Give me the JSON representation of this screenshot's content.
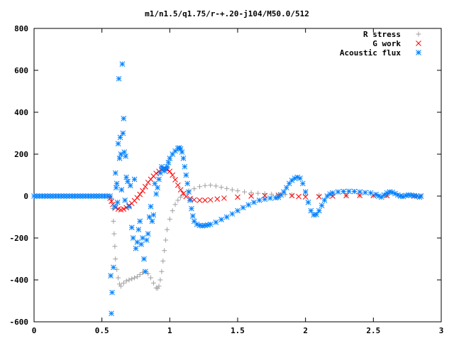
{
  "chart_data": {
    "type": "scatter",
    "title": "m1/n1.5/q1.75/r-+.20-j104/M50.0/512",
    "xlabel": "",
    "ylabel": "",
    "xlim": [
      0,
      3
    ],
    "ylim": [
      -600,
      800
    ],
    "x_ticks": [
      "0",
      "0.5",
      "1",
      "1.5",
      "2",
      "2.5",
      "3"
    ],
    "y_ticks": [
      "-600",
      "-400",
      "-200",
      "0",
      "200",
      "400",
      "600",
      "800"
    ],
    "grid": false,
    "legend_position": "top-right",
    "series": [
      {
        "name": "R stress",
        "marker": "plus",
        "color": "#a0a0a0",
        "points": [
          [
            0.57,
            -10
          ],
          [
            0.58,
            -60
          ],
          [
            0.585,
            -120
          ],
          [
            0.59,
            -180
          ],
          [
            0.595,
            -240
          ],
          [
            0.6,
            -300
          ],
          [
            0.61,
            -350
          ],
          [
            0.62,
            -390
          ],
          [
            0.63,
            -420
          ],
          [
            0.64,
            -430
          ],
          [
            0.66,
            -415
          ],
          [
            0.68,
            -405
          ],
          [
            0.7,
            -400
          ],
          [
            0.72,
            -395
          ],
          [
            0.74,
            -390
          ],
          [
            0.76,
            -385
          ],
          [
            0.78,
            -375
          ],
          [
            0.8,
            -365
          ],
          [
            0.82,
            -360
          ],
          [
            0.84,
            -370
          ],
          [
            0.86,
            -390
          ],
          [
            0.88,
            -415
          ],
          [
            0.9,
            -438
          ],
          [
            0.91,
            -440
          ],
          [
            0.92,
            -430
          ],
          [
            0.93,
            -400
          ],
          [
            0.94,
            -360
          ],
          [
            0.95,
            -310
          ],
          [
            0.96,
            -260
          ],
          [
            0.97,
            -210
          ],
          [
            0.98,
            -160
          ],
          [
            1.0,
            -110
          ],
          [
            1.02,
            -70
          ],
          [
            1.04,
            -40
          ],
          [
            1.06,
            -20
          ],
          [
            1.08,
            -5
          ],
          [
            1.1,
            10
          ],
          [
            1.14,
            25
          ],
          [
            1.18,
            35
          ],
          [
            1.22,
            45
          ],
          [
            1.26,
            50
          ],
          [
            1.3,
            52
          ],
          [
            1.34,
            48
          ],
          [
            1.38,
            42
          ],
          [
            1.42,
            36
          ],
          [
            1.46,
            30
          ],
          [
            1.5,
            25
          ],
          [
            1.55,
            20
          ],
          [
            1.6,
            16
          ],
          [
            1.65,
            13
          ],
          [
            1.7,
            11
          ],
          [
            1.75,
            9
          ],
          [
            1.8,
            8
          ],
          [
            1.85,
            7
          ],
          [
            1.9,
            6
          ],
          [
            2.0,
            5
          ],
          [
            2.1,
            4
          ],
          [
            2.2,
            3
          ],
          [
            2.3,
            2
          ],
          [
            2.4,
            2
          ],
          [
            2.5,
            1
          ],
          [
            2.6,
            1
          ],
          [
            2.7,
            0
          ],
          [
            2.8,
            0
          ],
          [
            2.85,
            0
          ]
        ]
      },
      {
        "name": "G work",
        "marker": "cross",
        "color": "#ff0000",
        "points": [
          [
            0.56,
            -10
          ],
          [
            0.57,
            -25
          ],
          [
            0.58,
            -40
          ],
          [
            0.6,
            -55
          ],
          [
            0.62,
            -62
          ],
          [
            0.64,
            -65
          ],
          [
            0.66,
            -62
          ],
          [
            0.68,
            -55
          ],
          [
            0.7,
            -45
          ],
          [
            0.72,
            -35
          ],
          [
            0.74,
            -22
          ],
          [
            0.76,
            -8
          ],
          [
            0.78,
            8
          ],
          [
            0.8,
            25
          ],
          [
            0.82,
            45
          ],
          [
            0.84,
            65
          ],
          [
            0.86,
            80
          ],
          [
            0.88,
            95
          ],
          [
            0.9,
            108
          ],
          [
            0.92,
            118
          ],
          [
            0.94,
            126
          ],
          [
            0.96,
            130
          ],
          [
            0.98,
            128
          ],
          [
            1.0,
            118
          ],
          [
            1.02,
            100
          ],
          [
            1.04,
            78
          ],
          [
            1.06,
            52
          ],
          [
            1.08,
            30
          ],
          [
            1.1,
            12
          ],
          [
            1.12,
            -2
          ],
          [
            1.15,
            -12
          ],
          [
            1.18,
            -18
          ],
          [
            1.22,
            -20
          ],
          [
            1.26,
            -20
          ],
          [
            1.3,
            -18
          ],
          [
            1.35,
            -14
          ],
          [
            1.4,
            -10
          ],
          [
            1.5,
            -5
          ],
          [
            1.6,
            0
          ],
          [
            1.7,
            2
          ],
          [
            1.8,
            4
          ],
          [
            1.9,
            2
          ],
          [
            1.95,
            -2
          ],
          [
            2.0,
            -4
          ],
          [
            2.1,
            -3
          ],
          [
            2.2,
            0
          ],
          [
            2.3,
            2
          ],
          [
            2.4,
            3
          ],
          [
            2.5,
            3
          ],
          [
            2.6,
            2
          ],
          [
            2.7,
            1
          ],
          [
            2.8,
            0
          ],
          [
            2.85,
            0
          ]
        ]
      },
      {
        "name": "Acoustic flux",
        "marker": "star",
        "color": "#0080ff",
        "points": [
          [
            0.0,
            0
          ],
          [
            0.02,
            0
          ],
          [
            0.04,
            0
          ],
          [
            0.06,
            0
          ],
          [
            0.08,
            0
          ],
          [
            0.1,
            0
          ],
          [
            0.12,
            0
          ],
          [
            0.14,
            0
          ],
          [
            0.16,
            0
          ],
          [
            0.18,
            0
          ],
          [
            0.2,
            0
          ],
          [
            0.22,
            0
          ],
          [
            0.24,
            0
          ],
          [
            0.26,
            0
          ],
          [
            0.28,
            0
          ],
          [
            0.3,
            0
          ],
          [
            0.32,
            0
          ],
          [
            0.34,
            0
          ],
          [
            0.36,
            0
          ],
          [
            0.38,
            0
          ],
          [
            0.4,
            0
          ],
          [
            0.42,
            0
          ],
          [
            0.44,
            0
          ],
          [
            0.46,
            0
          ],
          [
            0.48,
            0
          ],
          [
            0.5,
            0
          ],
          [
            0.52,
            0
          ],
          [
            0.54,
            0
          ],
          [
            0.56,
            0
          ],
          [
            0.565,
            -380
          ],
          [
            0.57,
            -560
          ],
          [
            0.575,
            -460
          ],
          [
            0.585,
            -340
          ],
          [
            0.595,
            -50
          ],
          [
            0.6,
            110
          ],
          [
            0.605,
            40
          ],
          [
            0.61,
            60
          ],
          [
            0.615,
            -30
          ],
          [
            0.62,
            250
          ],
          [
            0.625,
            560
          ],
          [
            0.63,
            180
          ],
          [
            0.635,
            280
          ],
          [
            0.64,
            200
          ],
          [
            0.645,
            30
          ],
          [
            0.65,
            630
          ],
          [
            0.655,
            300
          ],
          [
            0.66,
            370
          ],
          [
            0.665,
            210
          ],
          [
            0.67,
            -20
          ],
          [
            0.675,
            190
          ],
          [
            0.68,
            90
          ],
          [
            0.69,
            70
          ],
          [
            0.7,
            -50
          ],
          [
            0.71,
            50
          ],
          [
            0.72,
            -150
          ],
          [
            0.73,
            -200
          ],
          [
            0.74,
            80
          ],
          [
            0.75,
            -250
          ],
          [
            0.76,
            -220
          ],
          [
            0.77,
            -160
          ],
          [
            0.78,
            -120
          ],
          [
            0.79,
            -230
          ],
          [
            0.8,
            -200
          ],
          [
            0.81,
            -300
          ],
          [
            0.82,
            -360
          ],
          [
            0.83,
            -210
          ],
          [
            0.84,
            -180
          ],
          [
            0.85,
            -100
          ],
          [
            0.86,
            -50
          ],
          [
            0.87,
            -120
          ],
          [
            0.88,
            -90
          ],
          [
            0.89,
            60
          ],
          [
            0.9,
            10
          ],
          [
            0.91,
            40
          ],
          [
            0.92,
            80
          ],
          [
            0.93,
            110
          ],
          [
            0.94,
            140
          ],
          [
            0.95,
            130
          ],
          [
            0.96,
            120
          ],
          [
            0.97,
            130
          ],
          [
            0.98,
            140
          ],
          [
            0.99,
            160
          ],
          [
            1.0,
            180
          ],
          [
            1.02,
            200
          ],
          [
            1.04,
            215
          ],
          [
            1.06,
            228
          ],
          [
            1.07,
            230
          ],
          [
            1.08,
            225
          ],
          [
            1.09,
            210
          ],
          [
            1.1,
            180
          ],
          [
            1.11,
            140
          ],
          [
            1.12,
            100
          ],
          [
            1.13,
            60
          ],
          [
            1.14,
            20
          ],
          [
            1.15,
            -20
          ],
          [
            1.16,
            -60
          ],
          [
            1.17,
            -95
          ],
          [
            1.18,
            -120
          ],
          [
            1.2,
            -135
          ],
          [
            1.22,
            -140
          ],
          [
            1.24,
            -142
          ],
          [
            1.26,
            -140
          ],
          [
            1.28,
            -138
          ],
          [
            1.3,
            -135
          ],
          [
            1.34,
            -125
          ],
          [
            1.38,
            -112
          ],
          [
            1.42,
            -100
          ],
          [
            1.46,
            -85
          ],
          [
            1.5,
            -70
          ],
          [
            1.54,
            -55
          ],
          [
            1.58,
            -42
          ],
          [
            1.62,
            -30
          ],
          [
            1.66,
            -20
          ],
          [
            1.7,
            -15
          ],
          [
            1.74,
            -10
          ],
          [
            1.78,
            -8
          ],
          [
            1.8,
            -6
          ],
          [
            1.82,
            5
          ],
          [
            1.84,
            20
          ],
          [
            1.86,
            40
          ],
          [
            1.88,
            60
          ],
          [
            1.9,
            75
          ],
          [
            1.92,
            85
          ],
          [
            1.94,
            90
          ],
          [
            1.96,
            85
          ],
          [
            1.98,
            60
          ],
          [
            2.0,
            20
          ],
          [
            2.02,
            -30
          ],
          [
            2.04,
            -70
          ],
          [
            2.06,
            -90
          ],
          [
            2.08,
            -88
          ],
          [
            2.1,
            -70
          ],
          [
            2.12,
            -45
          ],
          [
            2.14,
            -20
          ],
          [
            2.16,
            0
          ],
          [
            2.18,
            10
          ],
          [
            2.2,
            15
          ],
          [
            2.24,
            20
          ],
          [
            2.28,
            22
          ],
          [
            2.32,
            23
          ],
          [
            2.36,
            22
          ],
          [
            2.4,
            20
          ],
          [
            2.44,
            17
          ],
          [
            2.48,
            15
          ],
          [
            2.52,
            8
          ],
          [
            2.54,
            0
          ],
          [
            2.56,
            -5
          ],
          [
            2.58,
            5
          ],
          [
            2.6,
            15
          ],
          [
            2.62,
            20
          ],
          [
            2.64,
            18
          ],
          [
            2.66,
            12
          ],
          [
            2.68,
            5
          ],
          [
            2.7,
            0
          ],
          [
            2.72,
            -2
          ],
          [
            2.74,
            3
          ],
          [
            2.76,
            5
          ],
          [
            2.78,
            4
          ],
          [
            2.8,
            2
          ],
          [
            2.82,
            0
          ],
          [
            2.84,
            -5
          ],
          [
            2.85,
            0
          ]
        ]
      }
    ]
  }
}
